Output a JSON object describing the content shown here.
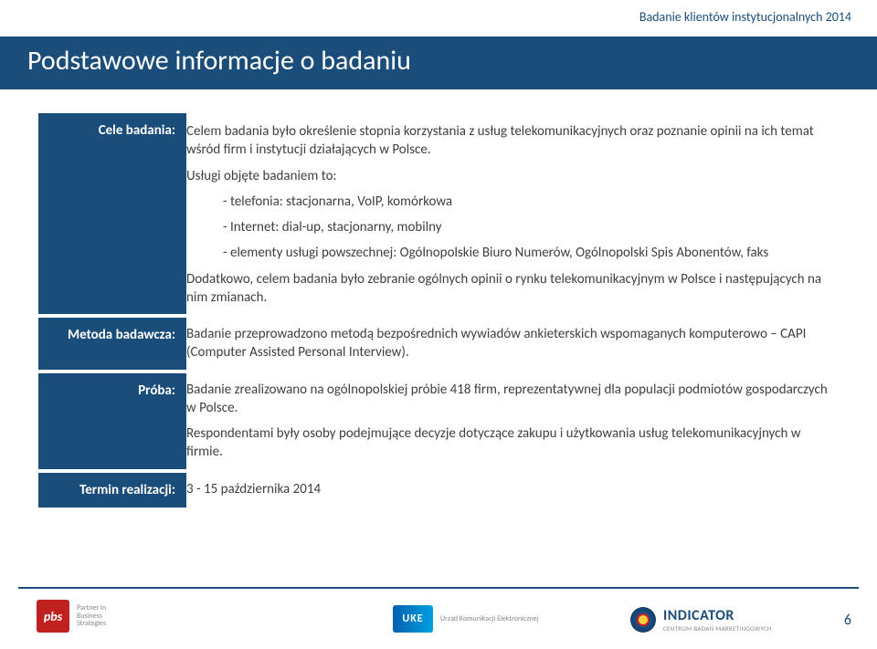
{
  "header_tag": "Badanie klientów instytucjonalnych 2014",
  "title": "Podstawowe informacje o badaniu",
  "rows": [
    {
      "label": "Cele badania:",
      "paragraphs": [
        {
          "text": "Celem badania było określenie stopnia korzystania z usług telekomunikacyjnych oraz poznanie opinii na ich temat wśród firm i instytucji działających w Polsce.",
          "indent": false
        },
        {
          "text": "Usługi objęte badaniem to:",
          "indent": false
        },
        {
          "text": "- telefonia: stacjonarna, VoIP, komórkowa",
          "indent": true
        },
        {
          "text": "- Internet: dial-up, stacjonarny, mobilny",
          "indent": true
        },
        {
          "text": "- elementy usługi powszechnej: Ogólnopolskie Biuro Numerów, Ogólnopolski Spis Abonentów, faks",
          "indent": true
        },
        {
          "text": "Dodatkowo, celem badania było zebranie ogólnych opinii o rynku telekomunikacyjnym w Polsce i następujących na nim zmianach.",
          "indent": false
        }
      ]
    },
    {
      "label": "Metoda badawcza:",
      "paragraphs": [
        {
          "text": "Badanie przeprowadzono metodą bezpośrednich wywiadów ankieterskich wspomaganych komputerowo – CAPI (Computer Assisted Personal Interview).",
          "indent": false
        }
      ]
    },
    {
      "label": "Próba:",
      "paragraphs": [
        {
          "text": "Badanie zrealizowano na ogólnopolskiej próbie 418 firm, reprezentatywnej dla populacji podmiotów gospodarczych w Polsce.",
          "indent": false
        },
        {
          "text": "Respondentami były osoby podejmujące decyzje dotyczące zakupu i użytkowania usług telekomunikacyjnych w firmie.",
          "indent": false
        }
      ]
    },
    {
      "label": "Termin realizacji:",
      "paragraphs": [
        {
          "text": "3 - 15 października 2014",
          "indent": false
        }
      ]
    }
  ],
  "logos": {
    "pbs": {
      "name": "pbs",
      "tagline1": "Partner in",
      "tagline2": "Business",
      "tagline3": "Strategies"
    },
    "uke": {
      "name": "UKE",
      "sub": "Urząd Komunikacji Elektronicznej"
    },
    "indicator": {
      "name": "INDICATOR",
      "sub": "CENTRUM BADAŃ MARKETINGOWYCH"
    }
  },
  "page_number": "6",
  "colors": {
    "brand": "#1a4d7a",
    "text": "#404040",
    "pbs_red": "#c02020"
  }
}
